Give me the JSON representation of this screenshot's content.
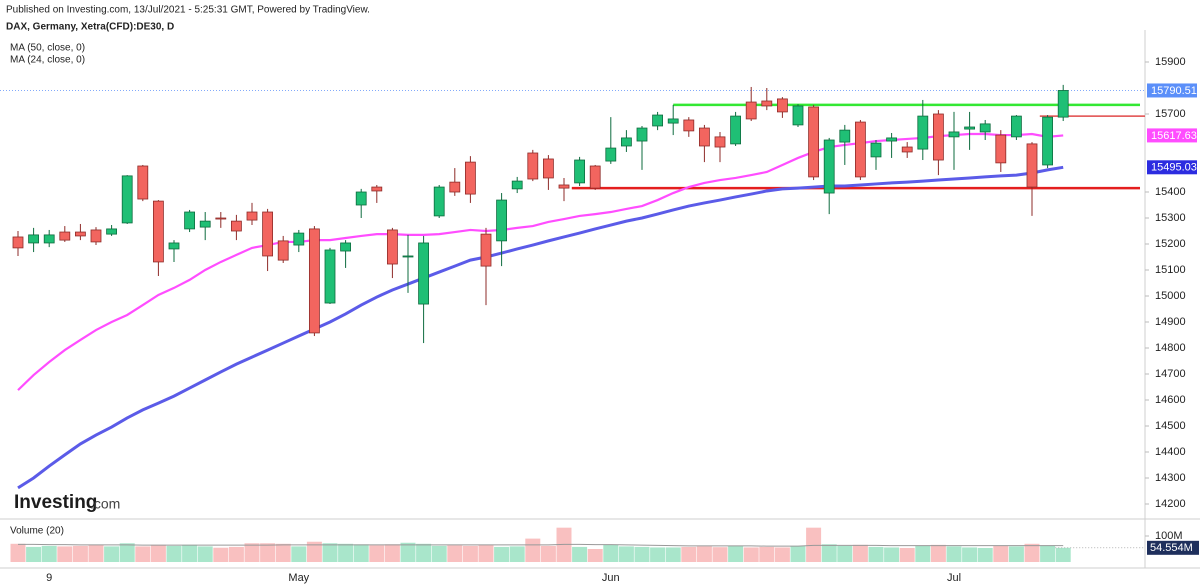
{
  "chart_data": {
    "type": "candlestick",
    "header": "Published on Investing.com, 13/Jul/2021 - 5:25:31 GMT, Powered by TradingView.",
    "title": "DAX, Germany, Xetra(CFD):DE30, D",
    "logo": "Investing",
    "logo_suffix": ".com",
    "categories": [
      null,
      null,
      "9",
      null,
      null,
      null,
      null,
      null,
      null,
      null,
      null,
      null,
      null,
      null,
      null,
      null,
      null,
      null,
      "May",
      null,
      null,
      null,
      null,
      null,
      null,
      null,
      null,
      null,
      null,
      null,
      null,
      null,
      null,
      null,
      null,
      null,
      null,
      null,
      "Jun",
      null,
      null,
      null,
      null,
      null,
      null,
      null,
      null,
      null,
      null,
      null,
      null,
      null,
      null,
      null,
      null,
      null,
      null,
      null,
      null,
      null,
      "Jul",
      null,
      null,
      null,
      null,
      null,
      null,
      null
    ],
    "open": [
      15227,
      15204,
      15204,
      15246,
      15246,
      15254,
      15238,
      15281,
      15500,
      15365,
      15181,
      15258,
      15265,
      15300,
      15288,
      15323,
      15323,
      15212,
      15196,
      15258,
      14973,
      15173,
      15350,
      15419,
      15254,
      15150,
      14969,
      15308,
      15438,
      15515,
      15238,
      15212,
      15412,
      15550,
      15527,
      15427,
      15435,
      15500,
      15519,
      15577,
      15596,
      15654,
      15665,
      15677,
      15646,
      15612,
      15585,
      15746,
      15750,
      15758,
      15658,
      15727,
      15396,
      15592,
      15669,
      15535,
      15596,
      15573,
      15565,
      15700,
      15612,
      15642,
      15631,
      15619,
      15612,
      15585,
      15504,
      15688
    ],
    "high": [
      15250,
      15262,
      15254,
      15269,
      15277,
      15265,
      15273,
      15465,
      15504,
      15369,
      15215,
      15331,
      15323,
      15323,
      15312,
      15358,
      15335,
      15231,
      15254,
      15269,
      15185,
      15215,
      15412,
      15427,
      15262,
      15235,
      15231,
      15427,
      15492,
      15538,
      15262,
      15396,
      15458,
      15562,
      15542,
      15454,
      15535,
      15504,
      15688,
      15638,
      15654,
      15708,
      15735,
      15688,
      15658,
      15631,
      15708,
      15804,
      15800,
      15765,
      15738,
      15735,
      15608,
      15658,
      15677,
      15600,
      15627,
      15592,
      15754,
      15715,
      15708,
      15708,
      15677,
      15638,
      15696,
      15592,
      15696,
      15812
    ],
    "low": [
      15154,
      15169,
      15188,
      15208,
      15215,
      15196,
      15231,
      15277,
      15365,
      15077,
      15131,
      15246,
      15215,
      15262,
      15215,
      15273,
      15096,
      15127,
      15169,
      14846,
      14969,
      15108,
      15300,
      15358,
      15069,
      15012,
      14819,
      15300,
      15385,
      15358,
      14965,
      15115,
      15396,
      15442,
      15408,
      15365,
      15423,
      15408,
      15508,
      15554,
      15485,
      15638,
      15619,
      15612,
      15515,
      15515,
      15577,
      15673,
      15715,
      15685,
      15650,
      15446,
      15315,
      15504,
      15446,
      15485,
      15531,
      15531,
      15523,
      15465,
      15485,
      15562,
      15600,
      15477,
      15600,
      15308,
      15492,
      15673
    ],
    "close": [
      15185,
      15235,
      15235,
      15215,
      15231,
      15208,
      15258,
      15462,
      15373,
      15131,
      15204,
      15323,
      15288,
      15296,
      15250,
      15292,
      15154,
      15138,
      15242,
      14858,
      15177,
      15204,
      15400,
      15404,
      15123,
      15154,
      15204,
      15419,
      15400,
      15392,
      15115,
      15369,
      15442,
      15450,
      15454,
      15415,
      15523,
      15415,
      15569,
      15608,
      15646,
      15696,
      15681,
      15635,
      15577,
      15573,
      15692,
      15681,
      15731,
      15708,
      15731,
      15458,
      15600,
      15638,
      15458,
      15588,
      15608,
      15554,
      15692,
      15523,
      15631,
      15650,
      15662,
      15512,
      15692,
      15419,
      15688,
      15790.51
    ],
    "up_color": "#1fbf75",
    "down_color": "#f2655f",
    "overlays": [
      {
        "name": "MA (50, close, 0)",
        "color": "#5b5be8",
        "values": [
          14262,
          14300,
          14346,
          14389,
          14431,
          14465,
          14496,
          14531,
          14562,
          14588,
          14615,
          14646,
          14677,
          14708,
          14738,
          14765,
          14792,
          14819,
          14846,
          14873,
          14900,
          14931,
          14965,
          14996,
          15023,
          15046,
          15069,
          15092,
          15115,
          15138,
          15150,
          15165,
          15181,
          15196,
          15212,
          15227,
          15242,
          15258,
          15273,
          15288,
          15300,
          15315,
          15331,
          15346,
          15358,
          15369,
          15381,
          15392,
          15404,
          15412,
          15415,
          15419,
          15423,
          15423,
          15427,
          15431,
          15435,
          15438,
          15442,
          15446,
          15450,
          15454,
          15458,
          15462,
          15465,
          15473,
          15485,
          15495.03
        ]
      },
      {
        "name": "MA (24, close, 0)",
        "color": "#ff4dff",
        "values": [
          14638,
          14696,
          14746,
          14792,
          14831,
          14869,
          14900,
          14927,
          14965,
          15004,
          15031,
          15062,
          15100,
          15131,
          15158,
          15185,
          15196,
          15208,
          15208,
          15215,
          15215,
          15223,
          15231,
          15238,
          15238,
          15235,
          15235,
          15238,
          15246,
          15254,
          15250,
          15254,
          15262,
          15269,
          15285,
          15296,
          15308,
          15315,
          15323,
          15335,
          15346,
          15369,
          15396,
          15419,
          15435,
          15446,
          15454,
          15465,
          15477,
          15504,
          15531,
          15554,
          15573,
          15581,
          15588,
          15596,
          15600,
          15604,
          15608,
          15615,
          15619,
          15623,
          15623,
          15619,
          15619,
          15623,
          15612,
          15617.63
        ]
      }
    ],
    "hlines": [
      {
        "value": 15735,
        "color": "#33e833"
      },
      {
        "value": 15415,
        "color": "#e41e1e"
      },
      {
        "value": 15692,
        "color": "#e04848"
      }
    ],
    "ylim": [
      14150,
      16020
    ],
    "yticks": [
      14200,
      14300,
      14400,
      14500,
      14600,
      14700,
      14800,
      14900,
      15000,
      15100,
      15200,
      15300,
      15400,
      15700,
      15900
    ],
    "volume": {
      "name": "Volume (20)",
      "up_color": "#a9e6cb",
      "down_color": "#f9c0c0",
      "values": [
        70000000,
        58000000,
        62000000,
        60000000,
        62000000,
        66000000,
        60000000,
        72000000,
        60000000,
        66000000,
        62000000,
        66000000,
        60000000,
        55000000,
        58000000,
        72000000,
        72000000,
        70000000,
        60000000,
        78000000,
        72000000,
        70000000,
        68000000,
        64000000,
        68000000,
        74000000,
        70000000,
        62000000,
        64000000,
        62000000,
        66000000,
        58000000,
        60000000,
        90000000,
        62000000,
        132000000,
        58000000,
        50000000,
        66000000,
        60000000,
        58000000,
        56000000,
        56000000,
        58000000,
        60000000,
        57000000,
        62000000,
        56000000,
        58000000,
        56000000,
        62000000,
        132000000,
        68000000,
        62000000,
        66000000,
        58000000,
        56000000,
        54000000,
        62000000,
        66000000,
        60000000,
        56000000,
        54000000,
        62000000,
        60000000,
        70000000,
        64000000,
        54554000
      ],
      "ma": [
        68000000,
        68000000,
        67000000,
        67000000,
        66000000,
        66000000,
        66000000,
        66000000,
        65000000,
        65000000,
        65000000,
        65000000,
        65000000,
        65000000,
        65000000,
        65000000,
        65000000,
        66000000,
        66000000,
        66000000,
        66000000,
        66000000,
        66000000,
        66000000,
        66000000,
        66000000,
        66000000,
        66000000,
        66000000,
        66000000,
        66000000,
        66000000,
        66000000,
        66000000,
        66000000,
        68000000,
        68000000,
        67000000,
        67000000,
        66000000,
        65000000,
        64000000,
        63000000,
        62000000,
        62000000,
        62000000,
        62000000,
        62000000,
        61000000,
        61000000,
        61000000,
        64000000,
        64000000,
        64000000,
        64000000,
        64000000,
        63000000,
        63000000,
        63000000,
        63000000,
        63000000,
        63000000,
        63000000,
        63000000,
        63000000,
        63000000,
        63000000,
        63000000
      ],
      "last_label": "54.554M",
      "ylim": [
        0,
        150000000
      ],
      "yticks": [
        {
          "value": 100000000,
          "label": "100M"
        }
      ]
    }
  }
}
